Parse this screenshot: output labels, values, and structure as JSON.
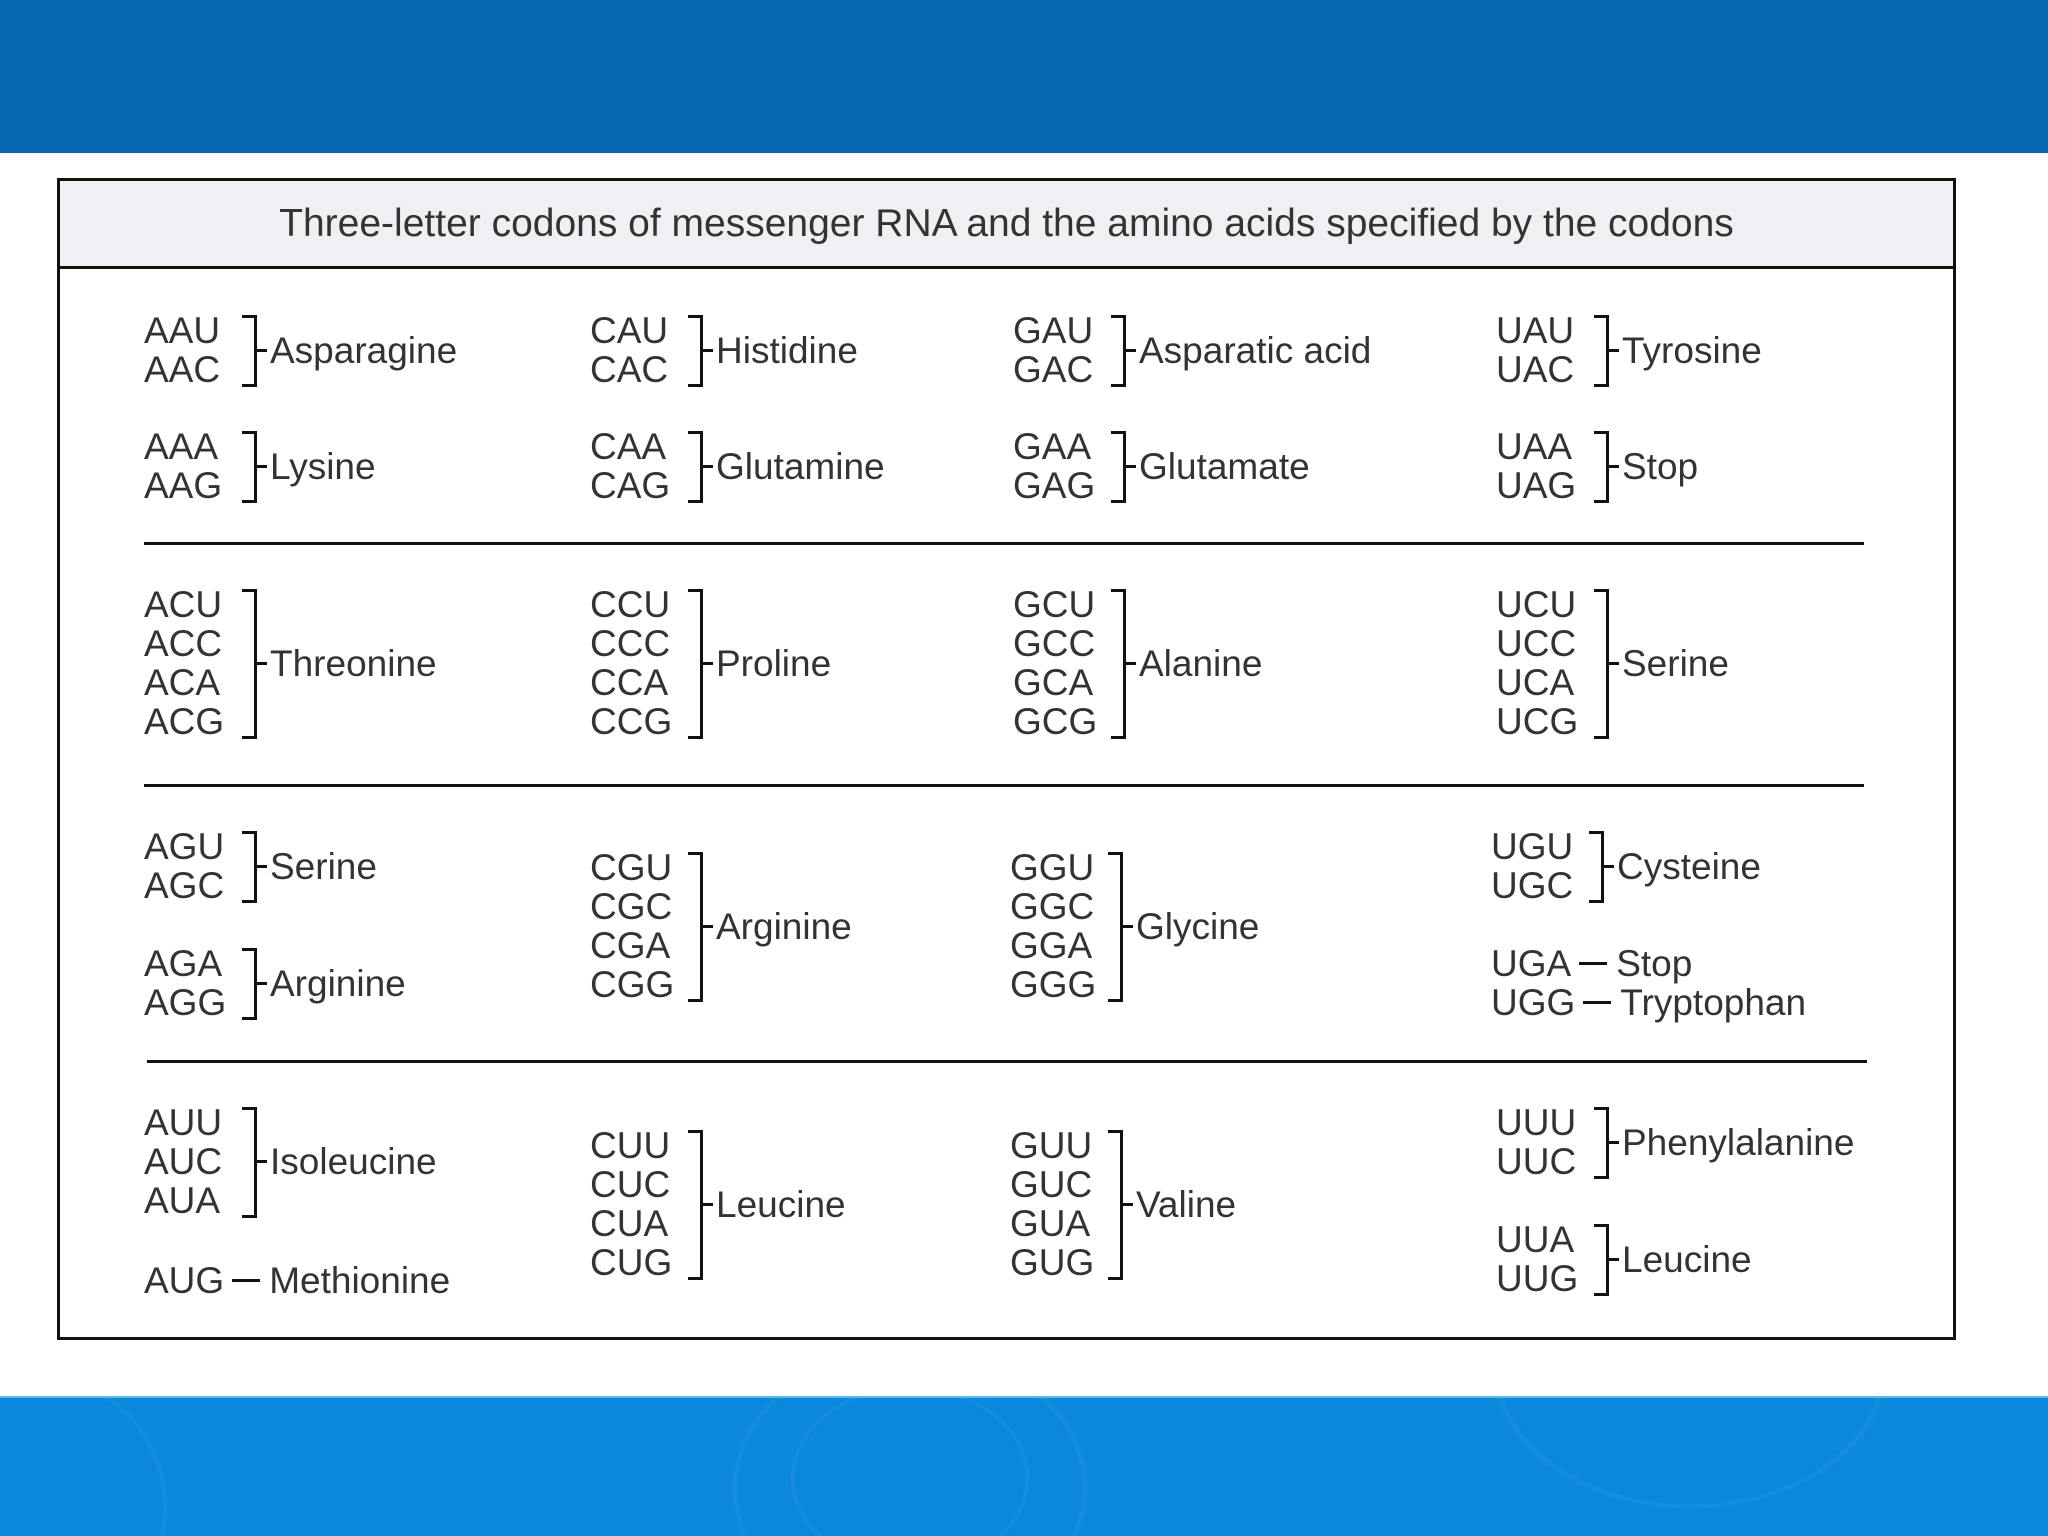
{
  "title": "Three-letter codons of messenger RNA and the amino acids specified by the codons",
  "colors": {
    "top_bar": "#0468b0",
    "bottom_bar": "#0a88dc",
    "header_bg": "#f0f0f4"
  },
  "groups": [
    {
      "codons": [
        "AAU",
        "AAC"
      ],
      "amino_acid": "Asparagine",
      "connector": "bracket"
    },
    {
      "codons": [
        "AAA",
        "AAG"
      ],
      "amino_acid": "Lysine",
      "connector": "bracket"
    },
    {
      "codons": [
        "CAU",
        "CAC"
      ],
      "amino_acid": "Histidine",
      "connector": "bracket"
    },
    {
      "codons": [
        "CAA",
        "CAG"
      ],
      "amino_acid": "Glutamine",
      "connector": "bracket"
    },
    {
      "codons": [
        "GAU",
        "GAC"
      ],
      "amino_acid": "Asparatic acid",
      "connector": "bracket"
    },
    {
      "codons": [
        "GAA",
        "GAG"
      ],
      "amino_acid": "Glutamate",
      "connector": "bracket"
    },
    {
      "codons": [
        "UAU",
        "UAC"
      ],
      "amino_acid": "Tyrosine",
      "connector": "bracket"
    },
    {
      "codons": [
        "UAA",
        "UAG"
      ],
      "amino_acid": "Stop",
      "connector": "bracket"
    },
    {
      "codons": [
        "ACU",
        "ACC",
        "ACA",
        "ACG"
      ],
      "amino_acid": "Threonine",
      "connector": "bracket"
    },
    {
      "codons": [
        "CCU",
        "CCC",
        "CCA",
        "CCG"
      ],
      "amino_acid": "Proline",
      "connector": "bracket"
    },
    {
      "codons": [
        "GCU",
        "GCC",
        "GCA",
        "GCG"
      ],
      "amino_acid": "Alanine",
      "connector": "bracket"
    },
    {
      "codons": [
        "UCU",
        "UCC",
        "UCA",
        "UCG"
      ],
      "amino_acid": "Serine",
      "connector": "bracket"
    },
    {
      "codons": [
        "AGU",
        "AGC"
      ],
      "amino_acid": "Serine",
      "connector": "bracket"
    },
    {
      "codons": [
        "AGA",
        "AGG"
      ],
      "amino_acid": "Arginine",
      "connector": "bracket"
    },
    {
      "codons": [
        "CGU",
        "CGC",
        "CGA",
        "CGG"
      ],
      "amino_acid": "Arginine",
      "connector": "bracket"
    },
    {
      "codons": [
        "GGU",
        "GGC",
        "GGA",
        "GGG"
      ],
      "amino_acid": "Glycine",
      "connector": "bracket"
    },
    {
      "codons": [
        "UGU",
        "UGC"
      ],
      "amino_acid": "Cysteine",
      "connector": "bracket"
    },
    {
      "codons": [
        "UGA"
      ],
      "amino_acid": "Stop",
      "connector": "dash"
    },
    {
      "codons": [
        "UGG"
      ],
      "amino_acid": "Tryptophan",
      "connector": "dash"
    },
    {
      "codons": [
        "AUU",
        "AUC",
        "AUA"
      ],
      "amino_acid": "Isoleucine",
      "connector": "bracket"
    },
    {
      "codons": [
        "AUG"
      ],
      "amino_acid": "Methionine",
      "connector": "dash"
    },
    {
      "codons": [
        "CUU",
        "CUC",
        "CUA",
        "CUG"
      ],
      "amino_acid": "Leucine",
      "connector": "bracket"
    },
    {
      "codons": [
        "GUU",
        "GUC",
        "GUA",
        "GUG"
      ],
      "amino_acid": "Valine",
      "connector": "bracket"
    },
    {
      "codons": [
        "UUU",
        "UUC"
      ],
      "amino_acid": "Phenylalanine",
      "connector": "bracket"
    },
    {
      "codons": [
        "UUA",
        "UUG"
      ],
      "amino_acid": "Leucine",
      "connector": "bracket"
    }
  ]
}
